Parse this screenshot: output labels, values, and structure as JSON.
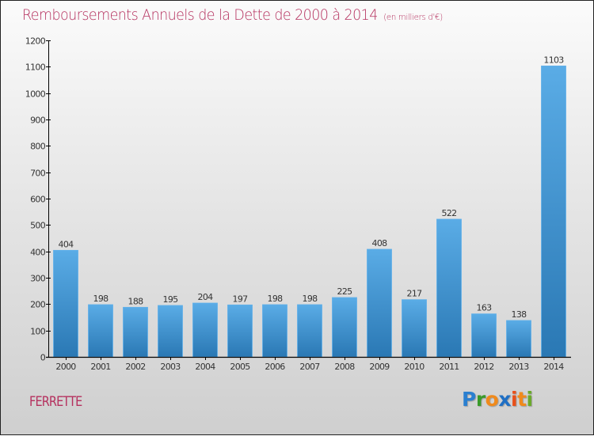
{
  "header": {
    "title": "Remboursements Annuels de la Dette de 2000 à 2014",
    "subtitle": "(en milliers d'€)"
  },
  "footer": {
    "commune": "FERRETTE",
    "logo_letters": [
      {
        "char": "P",
        "color": "#2a7fd0"
      },
      {
        "char": "r",
        "color": "#3a9a2a"
      },
      {
        "char": "o",
        "color": "#f08a1c"
      },
      {
        "char": "x",
        "color": "#1f6fc4"
      },
      {
        "char": "i",
        "color": "#e8501a"
      },
      {
        "char": "t",
        "color": "#f08a1c"
      },
      {
        "char": "i",
        "color": "#6aaa2a"
      }
    ]
  },
  "colors": {
    "title": "#b5305e",
    "bar_top": "#5aace6",
    "bar_bottom": "#2a78b4",
    "axis": "#000000"
  },
  "chart_data": {
    "type": "bar",
    "title": "Remboursements Annuels de la Dette de 2000 à 2014",
    "subtitle": "(en milliers d'€)",
    "xlabel": "",
    "ylabel": "",
    "categories": [
      "2000",
      "2001",
      "2002",
      "2003",
      "2004",
      "2005",
      "2006",
      "2007",
      "2008",
      "2009",
      "2010",
      "2011",
      "2012",
      "2013",
      "2014"
    ],
    "values": [
      404,
      198,
      188,
      195,
      204,
      197,
      198,
      198,
      225,
      408,
      217,
      522,
      163,
      138,
      1103
    ],
    "ylim": [
      0,
      1200
    ],
    "yticks": [
      0,
      100,
      200,
      300,
      400,
      500,
      600,
      700,
      800,
      900,
      1000,
      1100,
      1200
    ],
    "grid": false,
    "legend": "none",
    "data_labels": true
  }
}
